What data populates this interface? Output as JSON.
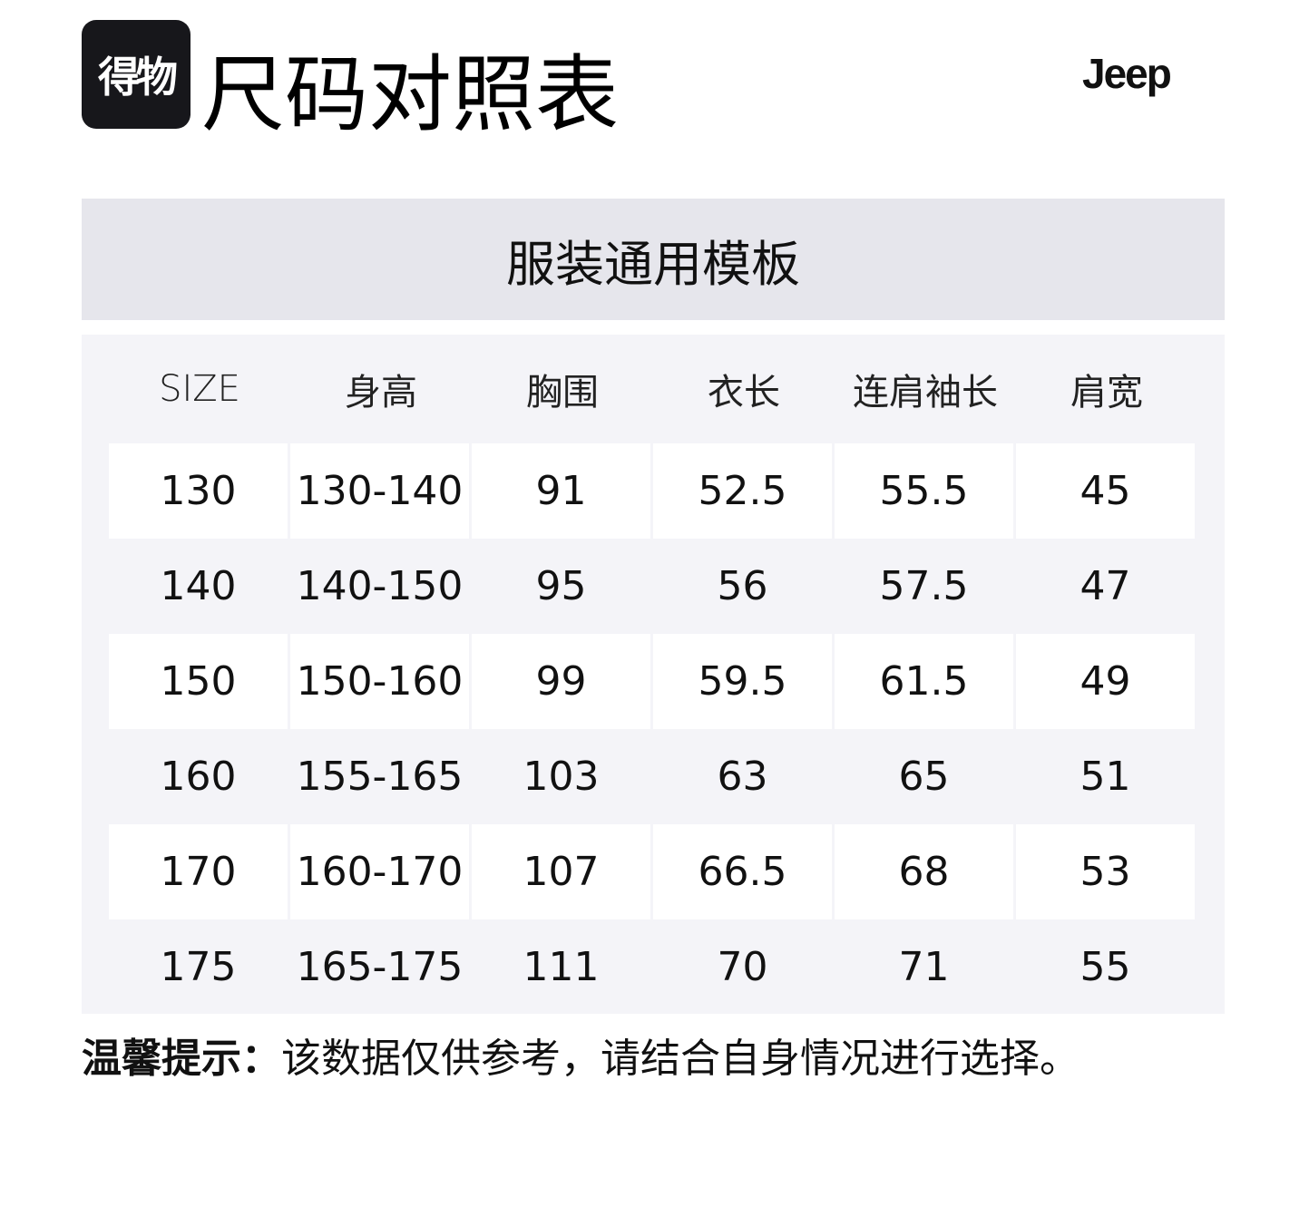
{
  "header": {
    "logo_text": "得物",
    "title": "尺码对照表",
    "brand": "Jeep"
  },
  "banner": "服装通用模板",
  "table": {
    "columns": [
      "SIZE",
      "身高",
      "胸围",
      "衣长",
      "连肩袖长",
      "肩宽"
    ],
    "rows": [
      [
        "130",
        "130-140",
        "91",
        "52.5",
        "55.5",
        "45"
      ],
      [
        "140",
        "140-150",
        "95",
        "56",
        "57.5",
        "47"
      ],
      [
        "150",
        "150-160",
        "99",
        "59.5",
        "61.5",
        "49"
      ],
      [
        "160",
        "155-165",
        "103",
        "63",
        "65",
        "51"
      ],
      [
        "170",
        "160-170",
        "107",
        "66.5",
        "68",
        "53"
      ],
      [
        "175",
        "165-175",
        "111",
        "70",
        "71",
        "55"
      ]
    ]
  },
  "note": {
    "label": "温馨提示：",
    "text": "该数据仅供参考，请结合自身情况进行选择。"
  }
}
